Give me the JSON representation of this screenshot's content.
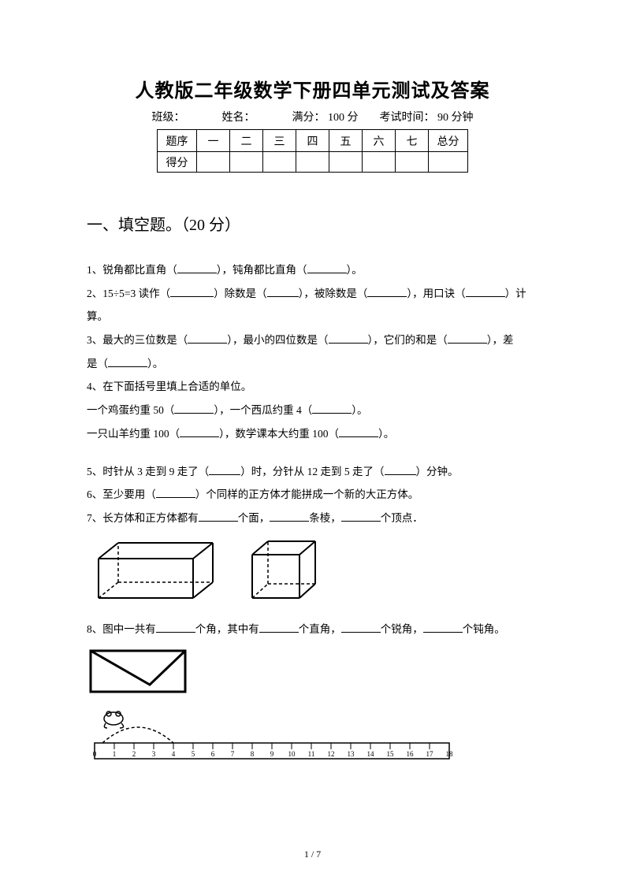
{
  "title": "人教版二年级数学下册四单元测试及答案",
  "info": {
    "class_label": "班级：",
    "name_label": "姓名：",
    "full_label": "满分：",
    "full_value": "100 分",
    "time_label": "考试时间：",
    "time_value": "90 分钟"
  },
  "score_table": {
    "row1": [
      "题序",
      "一",
      "二",
      "三",
      "四",
      "五",
      "六",
      "七",
      "总分"
    ],
    "row2_label": "得分"
  },
  "section1": {
    "heading": "一、填空题。（20 分）",
    "q1_a": "1、锐角都比直角（",
    "q1_b": "），钝角都比直角（",
    "q1_c": "）。",
    "q2_a": "2、15÷5=3 读作（",
    "q2_b": "）除数是（",
    "q2_c": "），被除数是（",
    "q2_d": "），用口诀（",
    "q2_e": "）计算。",
    "q3_a": "3、最大的三位数是（",
    "q3_b": "），最小的四位数是（",
    "q3_c": "），它们的和是（",
    "q3_d": "），差",
    "q3_e": "是（",
    "q3_f": "）。",
    "q4_h": "4、在下面括号里填上合适的单位。",
    "q4_a": "一个鸡蛋约重 50（",
    "q4_b": "），一个西瓜约重 4（",
    "q4_c": "）。",
    "q4_d": "一只山羊约重 100（",
    "q4_e": "），数学课本大约重 100（",
    "q4_f": "）。",
    "q5_a": "5、时针从 3 走到 9 走了（",
    "q5_b": "）时，分针从 12 走到 5 走了（",
    "q5_c": "）分钟。",
    "q6_a": "6、至少要用（",
    "q6_b": "）个同样的正方体才能拼成一个新的大正方体。",
    "q7_a": "7、长方体和正方体都有",
    "q7_b": "个面，",
    "q7_c": "条棱，",
    "q7_d": "个顶点．",
    "q8_a": "8、图中一共有",
    "q8_b": "个角，其中有",
    "q8_c": "个直角，",
    "q8_d": "个锐角，",
    "q8_e": "个钝角。"
  },
  "ruler_ticks": [
    "0",
    "1",
    "2",
    "3",
    "4",
    "5",
    "6",
    "7",
    "8",
    "9",
    "10",
    "11",
    "12",
    "13",
    "14",
    "15",
    "16",
    "17",
    "18"
  ],
  "page_number": "1 / 7",
  "colors": {
    "text": "#000000",
    "bg": "#ffffff",
    "border": "#000000"
  }
}
